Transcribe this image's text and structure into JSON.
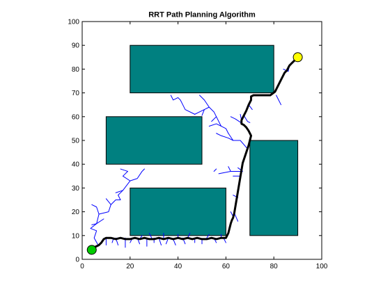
{
  "chart_data": {
    "type": "line",
    "title": "RRT Path Planning Algorithm",
    "xlabel": "",
    "ylabel": "",
    "xlim": [
      0,
      100
    ],
    "ylim": [
      0,
      100
    ],
    "xticks": [
      0,
      20,
      40,
      60,
      80,
      100
    ],
    "yticks": [
      0,
      10,
      20,
      30,
      40,
      50,
      60,
      70,
      80,
      90,
      100
    ],
    "grid": false,
    "colors": {
      "obstacle_fill": "#008080",
      "obstacle_edge": "#000000",
      "tree": "#0000ff",
      "path": "#000000",
      "start": "#00cc00",
      "goal": "#ffff00"
    },
    "obstacles": [
      {
        "name": "obstacle-top",
        "x": [
          20,
          80
        ],
        "y": [
          70,
          90
        ]
      },
      {
        "name": "obstacle-left-middle",
        "x": [
          10,
          50
        ],
        "y": [
          40,
          60
        ]
      },
      {
        "name": "obstacle-bottom-middle",
        "x": [
          20,
          60
        ],
        "y": [
          10,
          30
        ]
      },
      {
        "name": "obstacle-right",
        "x": [
          70,
          90
        ],
        "y": [
          10,
          50
        ]
      }
    ],
    "start": {
      "x": 4,
      "y": 4
    },
    "goal": {
      "x": 90,
      "y": 85
    },
    "path": {
      "x": [
        4,
        5,
        7,
        8,
        9,
        10,
        12,
        14,
        16,
        18,
        20,
        22,
        24,
        26,
        28,
        30,
        32,
        34,
        36,
        38,
        40,
        42,
        44,
        46,
        48,
        50,
        52,
        54,
        56,
        58,
        60,
        61,
        61.5,
        62,
        62.5,
        63,
        63.5,
        64,
        64.5,
        65,
        65.5,
        66,
        66.5,
        67,
        68,
        69,
        69.5,
        70,
        70.5,
        69.5,
        68.5,
        67.5,
        66.5,
        66.5,
        67.5,
        68.5,
        69.5,
        70.5,
        70.5,
        71.5,
        72.5,
        73.5,
        74.5,
        76.5,
        78.5,
        80.5,
        81.5,
        82.5,
        83.5,
        84.5,
        85.5,
        86.5,
        87.5,
        88.5,
        89.5,
        90
      ],
      "y": [
        4,
        5,
        6,
        7,
        8.5,
        9,
        9,
        8.5,
        9,
        8.5,
        8.5,
        9,
        8.5,
        9,
        8.5,
        8.5,
        9,
        8.5,
        9,
        8.5,
        9,
        8.5,
        9,
        8.5,
        9,
        8.5,
        8.5,
        9,
        8.5,
        9,
        9,
        11,
        13,
        15,
        16.5,
        17.5,
        19.5,
        22.5,
        25.5,
        28.5,
        31.5,
        34.5,
        37.5,
        40.5,
        43.5,
        46.5,
        48,
        50,
        52,
        54,
        55.5,
        56.5,
        57,
        58.5,
        60.5,
        62.5,
        65,
        67,
        68.5,
        69,
        69,
        69,
        69,
        69,
        69,
        70.5,
        72.5,
        74.5,
        76.5,
        78.5,
        79.5,
        81.5,
        82.5,
        83.5,
        84.5,
        85
      ]
    },
    "tree_edges": [
      [
        [
          6.5,
          6.3
        ],
        [
          5,
          9
        ],
        [
          6,
          12
        ],
        [
          3.5,
          13
        ],
        [
          6,
          15
        ],
        [
          7,
          19
        ],
        [
          6,
          22
        ],
        [
          4,
          23
        ]
      ],
      [
        [
          6,
          15
        ],
        [
          4,
          14.5
        ]
      ],
      [
        [
          6,
          15
        ],
        [
          9,
          17
        ]
      ],
      [
        [
          7,
          19
        ],
        [
          11,
          20
        ],
        [
          12,
          23
        ],
        [
          14,
          25
        ],
        [
          16,
          25
        ],
        [
          15,
          27
        ],
        [
          17,
          29
        ],
        [
          20,
          33
        ],
        [
          17,
          35
        ],
        [
          19,
          37
        ]
      ],
      [
        [
          12,
          23
        ],
        [
          10,
          25.5
        ]
      ],
      [
        [
          17,
          29
        ],
        [
          14,
          28
        ]
      ],
      [
        [
          20,
          33
        ],
        [
          23,
          34
        ],
        [
          25,
          37
        ],
        [
          26,
          38
        ]
      ],
      [
        [
          19,
          37
        ],
        [
          16,
          38
        ]
      ],
      [
        [
          10,
          9
        ],
        [
          10,
          6
        ]
      ],
      [
        [
          13,
          8.5
        ],
        [
          12.5,
          7
        ]
      ],
      [
        [
          14,
          9
        ],
        [
          15,
          6
        ]
      ],
      [
        [
          18,
          9
        ],
        [
          18,
          5
        ]
      ],
      [
        [
          21,
          9
        ],
        [
          20,
          7
        ]
      ],
      [
        [
          23,
          9
        ],
        [
          24,
          6.5
        ]
      ],
      [
        [
          24,
          8.5
        ],
        [
          25,
          10
        ]
      ],
      [
        [
          27,
          9
        ],
        [
          27,
          5.5
        ]
      ],
      [
        [
          29,
          9
        ],
        [
          28,
          11
        ]
      ],
      [
        [
          30,
          9
        ],
        [
          30,
          7
        ]
      ],
      [
        [
          32,
          9
        ],
        [
          33,
          6
        ]
      ],
      [
        [
          34,
          9
        ],
        [
          34,
          11
        ]
      ],
      [
        [
          36,
          9
        ],
        [
          35,
          6.5
        ]
      ],
      [
        [
          38,
          8.5
        ],
        [
          39,
          6
        ]
      ],
      [
        [
          40,
          9
        ],
        [
          40,
          10.5
        ]
      ],
      [
        [
          42,
          9
        ],
        [
          43,
          6.5
        ]
      ],
      [
        [
          44,
          9
        ],
        [
          45,
          11
        ]
      ],
      [
        [
          47,
          9
        ],
        [
          47,
          7
        ]
      ],
      [
        [
          50,
          8.5
        ],
        [
          50,
          6.5
        ]
      ],
      [
        [
          52,
          9
        ],
        [
          53,
          10.5
        ]
      ],
      [
        [
          55,
          9
        ],
        [
          56,
          7
        ]
      ],
      [
        [
          58,
          9
        ],
        [
          58,
          10.5
        ]
      ],
      [
        [
          59,
          9
        ],
        [
          60,
          7
        ]
      ],
      [
        [
          63,
          18
        ],
        [
          62,
          20
        ]
      ],
      [
        [
          63.5,
          19.5
        ],
        [
          65,
          16
        ]
      ],
      [
        [
          65,
          26
        ],
        [
          63,
          27
        ]
      ],
      [
        [
          66,
          35
        ],
        [
          63,
          35
        ]
      ],
      [
        [
          67,
          37
        ],
        [
          65,
          38.5
        ]
      ],
      [
        [
          66,
          37
        ],
        [
          62,
          37
        ],
        [
          57,
          36
        ]
      ],
      [
        [
          62,
          37
        ],
        [
          61,
          39
        ]
      ],
      [
        [
          56,
          38
        ],
        [
          55,
          37
        ]
      ],
      [
        [
          69,
          46.5
        ],
        [
          66,
          50
        ],
        [
          63,
          50
        ],
        [
          61,
          53
        ]
      ],
      [
        [
          63,
          50
        ],
        [
          61,
          51
        ],
        [
          58,
          52
        ],
        [
          56,
          53
        ]
      ],
      [
        [
          61,
          53
        ],
        [
          60,
          55
        ],
        [
          58,
          56
        ],
        [
          56,
          57
        ],
        [
          53,
          56
        ]
      ],
      [
        [
          58,
          56
        ],
        [
          56,
          60
        ],
        [
          55,
          62
        ],
        [
          53,
          64
        ],
        [
          51,
          67
        ]
      ],
      [
        [
          56,
          60
        ],
        [
          54,
          58
        ]
      ],
      [
        [
          53,
          64
        ],
        [
          51,
          63
        ],
        [
          49,
          62
        ]
      ],
      [
        [
          51,
          67
        ],
        [
          49,
          69
        ]
      ],
      [
        [
          51,
          63
        ],
        [
          50,
          60.5
        ]
      ],
      [
        [
          47,
          61
        ],
        [
          43,
          63
        ],
        [
          42,
          65
        ],
        [
          41,
          67
        ],
        [
          40,
          68
        ]
      ],
      [
        [
          40,
          68
        ],
        [
          38,
          67
        ],
        [
          37,
          69
        ]
      ],
      [
        [
          49,
          62
        ],
        [
          47,
          61
        ]
      ],
      [
        [
          67,
          57
        ],
        [
          64,
          59
        ],
        [
          62,
          60
        ]
      ],
      [
        [
          66.5,
          58.5
        ],
        [
          66,
          61
        ]
      ],
      [
        [
          67.5,
          60.5
        ],
        [
          69,
          58
        ],
        [
          70,
          57.5
        ]
      ],
      [
        [
          69.5,
          65
        ],
        [
          71,
          63
        ]
      ],
      [
        [
          81,
          69
        ],
        [
          82,
          67
        ],
        [
          83,
          65
        ]
      ],
      [
        [
          86.5,
          81.5
        ],
        [
          86,
          79
        ],
        [
          84,
          80
        ]
      ]
    ]
  }
}
